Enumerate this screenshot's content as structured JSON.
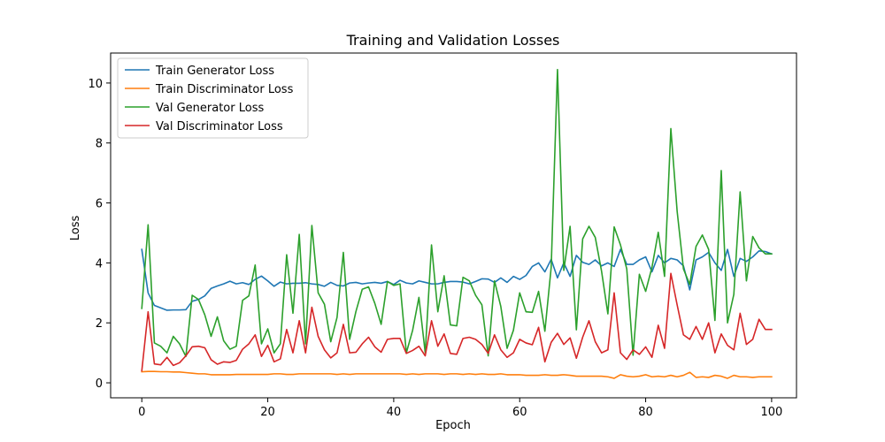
{
  "chart_data": {
    "type": "line",
    "title": "Training and Validation Losses",
    "xlabel": "Epoch",
    "ylabel": "Loss",
    "xlim": [
      -4.95,
      103.95
    ],
    "ylim": [
      -0.5,
      11
    ],
    "xticks": [
      0,
      20,
      40,
      60,
      80,
      100
    ],
    "yticks": [
      0,
      2,
      4,
      6,
      8,
      10
    ],
    "grid": false,
    "legend_position": "top-left",
    "series": [
      {
        "name": "Train Generator Loss",
        "color": "#1f77b4",
        "values": [
          4.45,
          3.0,
          2.58,
          2.5,
          2.42,
          2.43,
          2.43,
          2.44,
          2.72,
          2.78,
          2.9,
          3.15,
          3.23,
          3.3,
          3.39,
          3.3,
          3.34,
          3.28,
          3.45,
          3.56,
          3.4,
          3.22,
          3.36,
          3.3,
          3.32,
          3.32,
          3.34,
          3.3,
          3.28,
          3.22,
          3.35,
          3.25,
          3.23,
          3.33,
          3.35,
          3.3,
          3.33,
          3.35,
          3.32,
          3.38,
          3.28,
          3.42,
          3.33,
          3.3,
          3.4,
          3.35,
          3.3,
          3.3,
          3.35,
          3.38,
          3.38,
          3.36,
          3.3,
          3.38,
          3.47,
          3.46,
          3.35,
          3.5,
          3.35,
          3.55,
          3.45,
          3.58,
          3.88,
          4.0,
          3.7,
          4.12,
          3.5,
          4.0,
          3.55,
          4.25,
          4.02,
          3.95,
          4.1,
          3.9,
          4.0,
          3.88,
          4.45,
          3.95,
          3.95,
          4.1,
          4.2,
          3.7,
          4.25,
          4.0,
          4.15,
          4.1,
          3.9,
          3.1,
          4.1,
          4.2,
          4.35,
          4.0,
          3.75,
          4.45,
          3.55,
          4.15,
          4.05,
          4.2,
          4.4,
          4.38,
          4.3
        ]
      },
      {
        "name": "Train Discriminator Loss",
        "color": "#ff7f0e",
        "values": [
          0.37,
          0.38,
          0.38,
          0.37,
          0.37,
          0.36,
          0.36,
          0.34,
          0.32,
          0.3,
          0.3,
          0.27,
          0.27,
          0.27,
          0.27,
          0.28,
          0.28,
          0.28,
          0.28,
          0.28,
          0.28,
          0.3,
          0.3,
          0.28,
          0.28,
          0.3,
          0.3,
          0.3,
          0.3,
          0.3,
          0.3,
          0.28,
          0.3,
          0.28,
          0.3,
          0.3,
          0.3,
          0.3,
          0.3,
          0.3,
          0.3,
          0.3,
          0.28,
          0.3,
          0.28,
          0.3,
          0.3,
          0.3,
          0.28,
          0.3,
          0.3,
          0.28,
          0.3,
          0.28,
          0.3,
          0.28,
          0.28,
          0.3,
          0.27,
          0.27,
          0.27,
          0.25,
          0.25,
          0.25,
          0.27,
          0.25,
          0.25,
          0.27,
          0.25,
          0.22,
          0.22,
          0.22,
          0.22,
          0.22,
          0.2,
          0.15,
          0.27,
          0.22,
          0.2,
          0.22,
          0.27,
          0.2,
          0.22,
          0.2,
          0.25,
          0.2,
          0.25,
          0.35,
          0.18,
          0.2,
          0.18,
          0.25,
          0.22,
          0.15,
          0.25,
          0.2,
          0.2,
          0.18,
          0.2,
          0.2,
          0.2
        ]
      },
      {
        "name": "Val Generator Loss",
        "color": "#2ca02c",
        "values": [
          2.48,
          5.27,
          1.33,
          1.22,
          1.0,
          1.55,
          1.3,
          0.88,
          2.92,
          2.78,
          2.27,
          1.55,
          2.2,
          1.4,
          1.12,
          1.22,
          2.75,
          2.9,
          3.93,
          1.3,
          1.8,
          1.0,
          1.3,
          4.27,
          2.32,
          4.95,
          1.3,
          5.25,
          3.0,
          2.62,
          1.37,
          2.18,
          4.35,
          1.45,
          2.38,
          3.12,
          3.2,
          2.65,
          1.95,
          3.38,
          3.25,
          3.3,
          1.0,
          1.75,
          2.85,
          1.0,
          4.6,
          2.37,
          3.57,
          1.93,
          1.9,
          3.52,
          3.4,
          2.92,
          2.6,
          0.9,
          3.4,
          2.55,
          1.15,
          1.75,
          3.0,
          2.37,
          2.35,
          3.05,
          1.72,
          3.85,
          10.45,
          3.75,
          5.22,
          1.77,
          4.8,
          5.22,
          4.85,
          3.72,
          2.3,
          5.2,
          4.6,
          3.8,
          0.92,
          3.62,
          3.05,
          3.85,
          5.02,
          3.55,
          8.48,
          5.72,
          3.8,
          3.28,
          4.55,
          4.93,
          4.45,
          2.08,
          7.08,
          2.0,
          2.95,
          6.37,
          3.4,
          4.88,
          4.5,
          4.3,
          4.3
        ]
      },
      {
        "name": "Val Discriminator Loss",
        "color": "#d62728",
        "values": [
          0.4,
          2.37,
          0.63,
          0.6,
          0.85,
          0.58,
          0.67,
          0.9,
          1.2,
          1.22,
          1.17,
          0.77,
          0.62,
          0.7,
          0.68,
          0.75,
          1.12,
          1.3,
          1.6,
          0.88,
          1.25,
          0.7,
          0.8,
          1.78,
          1.0,
          2.07,
          1.0,
          2.52,
          1.55,
          1.1,
          0.83,
          1.0,
          1.95,
          1.0,
          1.02,
          1.3,
          1.52,
          1.2,
          1.02,
          1.45,
          1.48,
          1.48,
          0.98,
          1.08,
          1.22,
          0.9,
          2.07,
          1.22,
          1.63,
          0.98,
          0.95,
          1.48,
          1.52,
          1.45,
          1.28,
          0.98,
          1.6,
          1.1,
          0.85,
          1.0,
          1.45,
          1.33,
          1.27,
          1.85,
          0.7,
          1.35,
          1.65,
          1.28,
          1.5,
          0.82,
          1.52,
          2.07,
          1.37,
          1.0,
          1.1,
          3.0,
          1.0,
          0.78,
          1.1,
          0.95,
          1.2,
          0.85,
          1.92,
          1.15,
          3.65,
          2.6,
          1.6,
          1.45,
          1.88,
          1.45,
          2.0,
          1.0,
          1.63,
          1.25,
          1.1,
          2.32,
          1.28,
          1.45,
          2.12,
          1.78,
          1.78
        ]
      }
    ]
  }
}
